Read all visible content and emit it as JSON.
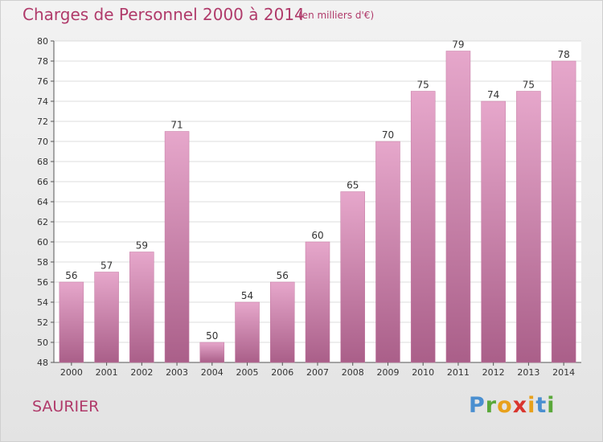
{
  "header": {
    "title": "Charges de Personnel 2000 à 2014",
    "subtitle": "(en milliers d'€)"
  },
  "footer": {
    "commune": "SAURIER",
    "brand": "Proxiti"
  },
  "colors": {
    "accent": "#b03a6a",
    "bar_top": "#e6a7cb",
    "bar_bottom": "#aa5f89",
    "logo_letters": [
      "#4a8fd0",
      "#5aa83a",
      "#e8a11b",
      "#d9352e",
      "#e8a11b",
      "#4a8fd0",
      "#5aa83a"
    ]
  },
  "chart_data": {
    "type": "bar",
    "title": "Charges de Personnel 2000 à 2014",
    "subtitle": "(en milliers d'€)",
    "categories": [
      "2000",
      "2001",
      "2002",
      "2003",
      "2004",
      "2005",
      "2006",
      "2007",
      "2008",
      "2009",
      "2010",
      "2011",
      "2012",
      "2013",
      "2014"
    ],
    "values": [
      56,
      57,
      59,
      71,
      50,
      54,
      56,
      60,
      65,
      70,
      75,
      79,
      74,
      75,
      78
    ],
    "ylim": [
      48,
      80
    ],
    "yticks": [
      48,
      50,
      52,
      54,
      56,
      58,
      60,
      62,
      64,
      66,
      68,
      70,
      72,
      74,
      76,
      78,
      80
    ],
    "grid": true,
    "data_labels": true
  }
}
